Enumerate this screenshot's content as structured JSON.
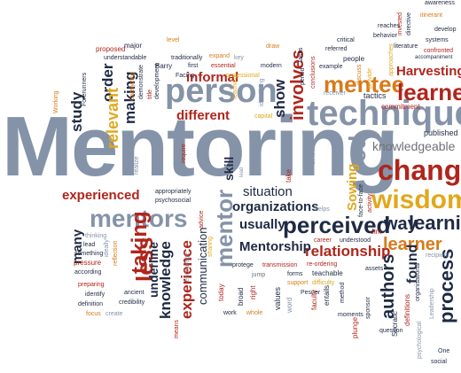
{
  "colors": {
    "steel": "#8593a9",
    "navy": "#1f2a44",
    "red": "#b0251c",
    "orange": "#d87a1a",
    "yellow": "#e0a81c",
    "gray": "#6f7177"
  },
  "words": [
    {
      "t": "Mentoring"
    },
    {
      "t": "person"
    },
    {
      "t": "techniques"
    },
    {
      "t": "mentee"
    },
    {
      "t": "learner"
    },
    {
      "t": "change"
    },
    {
      "t": "wisdom"
    },
    {
      "t": "learning"
    },
    {
      "t": "learner"
    },
    {
      "t": "perceived"
    },
    {
      "t": "relationship"
    },
    {
      "t": "mentors"
    },
    {
      "t": "experienced"
    },
    {
      "t": "organizations"
    },
    {
      "t": "situation"
    },
    {
      "t": "usually"
    },
    {
      "t": "Mentorship"
    },
    {
      "t": "different"
    },
    {
      "t": "informal"
    },
    {
      "t": "Harvesting"
    },
    {
      "t": "knowledgeable"
    },
    {
      "t": "commitment"
    },
    {
      "t": "published"
    },
    {
      "t": "tactics"
    },
    {
      "t": "way"
    },
    {
      "t": "taking"
    },
    {
      "t": "less"
    },
    {
      "t": "knowledge"
    },
    {
      "t": "experience"
    },
    {
      "t": "underline"
    },
    {
      "t": "communication"
    },
    {
      "t": "mentor"
    },
    {
      "t": "many"
    },
    {
      "t": "study"
    },
    {
      "t": "order"
    },
    {
      "t": "relevant"
    },
    {
      "t": "making"
    },
    {
      "t": "involves"
    },
    {
      "t": "show"
    },
    {
      "t": "skill"
    },
    {
      "t": "process"
    },
    {
      "t": "authors"
    },
    {
      "t": "found"
    },
    {
      "t": "Sowing"
    },
    {
      "t": "ed"
    },
    {
      "t": "proposed"
    },
    {
      "t": "major"
    },
    {
      "t": "traditionally"
    },
    {
      "t": "expand"
    },
    {
      "t": "understandable"
    },
    {
      "t": "Barry"
    },
    {
      "t": "first"
    },
    {
      "t": "essential"
    },
    {
      "t": "modern"
    },
    {
      "t": "professional"
    },
    {
      "t": "referred"
    },
    {
      "t": "people"
    },
    {
      "t": "example"
    },
    {
      "t": "reaches"
    },
    {
      "t": "behavior"
    },
    {
      "t": "literature"
    },
    {
      "t": "systems"
    },
    {
      "t": "confronted"
    },
    {
      "t": "itinerant"
    },
    {
      "t": "develop"
    },
    {
      "t": "awareness"
    },
    {
      "t": "accompaniment"
    },
    {
      "t": "receiver"
    },
    {
      "t": "capital"
    },
    {
      "t": "appropriately"
    },
    {
      "t": "psychosocial"
    },
    {
      "t": "thinking"
    },
    {
      "t": "something"
    },
    {
      "t": "pressure"
    },
    {
      "t": "according"
    },
    {
      "t": "preparing"
    },
    {
      "t": "identify"
    },
    {
      "t": "definition"
    },
    {
      "t": "focus"
    },
    {
      "t": "create"
    },
    {
      "t": "ancient"
    },
    {
      "t": "credibility"
    },
    {
      "t": "protege"
    },
    {
      "t": "transmission"
    },
    {
      "t": "re-ordering"
    },
    {
      "t": "forms"
    },
    {
      "t": "teachable"
    },
    {
      "t": "support"
    },
    {
      "t": "difficulty"
    },
    {
      "t": "helps"
    },
    {
      "t": "career"
    },
    {
      "t": "understood"
    },
    {
      "t": "recipient"
    },
    {
      "t": "Jim"
    },
    {
      "t": "assets"
    },
    {
      "t": "work"
    },
    {
      "t": "whole"
    },
    {
      "t": "broad"
    },
    {
      "t": "right"
    },
    {
      "t": "today"
    },
    {
      "t": "Showing"
    },
    {
      "t": "jump"
    },
    {
      "t": "Pesner"
    },
    {
      "t": "moments"
    },
    {
      "t": "method"
    },
    {
      "t": "plunge"
    },
    {
      "t": "question"
    },
    {
      "t": "definitions"
    },
    {
      "t": "Socratic"
    },
    {
      "t": "social"
    },
    {
      "t": "One"
    },
    {
      "t": "level"
    },
    {
      "t": "draw"
    },
    {
      "t": "critical"
    },
    {
      "t": "key"
    },
    {
      "t": "Facing"
    },
    {
      "t": "values"
    },
    {
      "t": "entails"
    },
    {
      "t": "faculty"
    },
    {
      "t": "word"
    },
    {
      "t": "require"
    },
    {
      "t": "take"
    },
    {
      "t": "since"
    },
    {
      "t": "lead"
    },
    {
      "t": "realize"
    },
    {
      "t": "reflection"
    },
    {
      "t": "ideally"
    },
    {
      "t": "sharing"
    },
    {
      "t": "advice"
    },
    {
      "t": "Leadership"
    },
    {
      "t": "development"
    },
    {
      "t": "Catalyzing"
    },
    {
      "t": "demonstrate"
    },
    {
      "t": "period"
    },
    {
      "t": "tasks"
    },
    {
      "t": "means"
    },
    {
      "t": "face-to-face"
    },
    {
      "t": "psychological"
    },
    {
      "t": "encourage"
    },
    {
      "t": "teaching"
    },
    {
      "t": "Forerunners"
    },
    {
      "t": "Working"
    },
    {
      "t": "title"
    },
    {
      "t": "conclusions"
    },
    {
      "t": "provide"
    },
    {
      "t": "discuss"
    },
    {
      "t": "organisational"
    },
    {
      "t": "identifying"
    },
    {
      "t": "activity"
    },
    {
      "t": "invested"
    },
    {
      "t": "directive"
    },
    {
      "t": "approaches"
    },
    {
      "t": "sponsor"
    }
  ]
}
